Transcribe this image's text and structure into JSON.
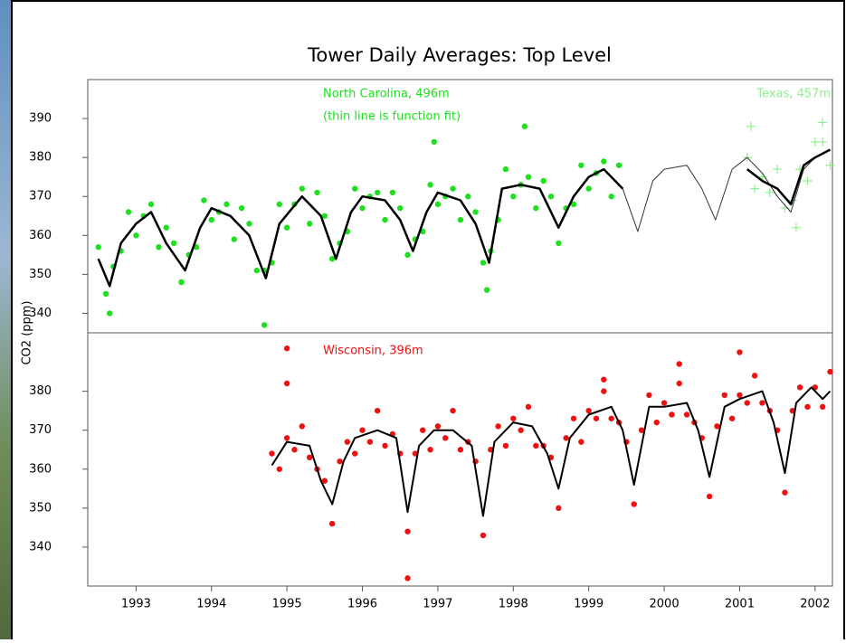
{
  "chart_data": [
    {
      "type": "scatter",
      "title": "Tower Daily Averages:  Top Level",
      "ylabel": "CO2 (ppm)",
      "annotations": [
        "(thin line is function fit)"
      ],
      "xlim": [
        1992.36,
        2002.23
      ],
      "ylim": [
        335,
        400
      ],
      "yticks": [
        340,
        350,
        360,
        370,
        380,
        390
      ],
      "series": [
        {
          "name": "North Carolina, 496m",
          "color": "#1ee01e",
          "marker": "dot",
          "x": [
            1992.5,
            1992.6,
            1992.7,
            1992.8,
            1992.9,
            1993.0,
            1993.1,
            1993.2,
            1993.3,
            1993.4,
            1993.5,
            1993.6,
            1993.7,
            1993.8,
            1993.9,
            1994.0,
            1994.1,
            1994.2,
            1994.3,
            1994.4,
            1994.5,
            1994.6,
            1994.7,
            1994.8,
            1994.9,
            1995.0,
            1995.1,
            1995.2,
            1995.3,
            1995.4,
            1995.5,
            1995.6,
            1995.7,
            1995.8,
            1995.9,
            1996.0,
            1996.1,
            1996.2,
            1996.3,
            1996.4,
            1996.5,
            1996.6,
            1996.7,
            1996.8,
            1996.9,
            1997.0,
            1997.1,
            1997.2,
            1997.3,
            1997.4,
            1997.5,
            1997.6,
            1997.7,
            1997.8,
            1997.9,
            1998.0,
            1998.1,
            1998.2,
            1998.3,
            1998.4,
            1998.5,
            1998.6,
            1998.7,
            1998.8,
            1998.9,
            1999.0,
            1999.1,
            1999.2,
            1999.3,
            1999.4,
            1994.7,
            1996.95,
            1998.15,
            1992.65,
            1997.65
          ],
          "values": [
            357,
            345,
            352,
            356,
            366,
            360,
            365,
            368,
            357,
            362,
            358,
            348,
            355,
            357,
            369,
            364,
            366,
            368,
            359,
            367,
            363,
            351,
            351,
            353,
            368,
            362,
            368,
            372,
            363,
            371,
            365,
            354,
            358,
            361,
            372,
            367,
            370,
            371,
            364,
            371,
            367,
            355,
            359,
            361,
            373,
            368,
            370,
            372,
            364,
            370,
            366,
            353,
            356,
            364,
            377,
            370,
            373,
            375,
            367,
            374,
            370,
            358,
            367,
            368,
            378,
            372,
            376,
            379,
            370,
            378,
            337,
            384,
            388,
            340,
            346
          ]
        },
        {
          "name": "Texas, 457m",
          "color": "#8ef08e",
          "marker": "plus",
          "x": [
            2001.1,
            2001.2,
            2001.3,
            2001.4,
            2001.5,
            2001.6,
            2001.7,
            2001.8,
            2001.9,
            2002.0,
            2002.1,
            2002.2,
            2001.15,
            2001.75,
            2002.1
          ],
          "values": [
            380,
            372,
            375,
            371,
            377,
            367,
            369,
            377,
            374,
            384,
            384,
            378,
            388,
            362,
            389
          ]
        },
        {
          "color": "#000000",
          "line_width": 2.5,
          "x": [
            1992.5,
            1992.65,
            1992.8,
            1993.0,
            1993.2,
            1993.4,
            1993.65,
            1993.85,
            1994.0,
            1994.25,
            1994.5,
            1994.72,
            1994.9,
            1995.2,
            1995.45,
            1995.65,
            1995.85,
            1996.0,
            1996.3,
            1996.5,
            1996.67,
            1996.85,
            1997.0,
            1997.3,
            1997.5,
            1997.68,
            1997.85,
            1998.1,
            1998.35,
            1998.6,
            1998.8,
            1999.0,
            1999.2,
            1999.45
          ],
          "values": [
            354,
            347,
            358,
            363,
            366,
            358,
            351,
            362,
            367,
            365,
            360,
            349,
            363,
            370,
            365,
            354,
            366,
            370,
            369,
            364,
            356,
            366,
            371,
            369,
            363,
            353,
            372,
            373,
            372,
            362,
            370,
            375,
            377,
            372
          ]
        },
        {
          "color": "#333333",
          "line_width": 1,
          "x": [
            1999.45,
            1999.65,
            1999.85,
            2000.0,
            2000.3,
            2000.5,
            2000.68,
            2000.9,
            2001.1,
            2001.3,
            2001.5,
            2001.68,
            2001.85,
            2002.0,
            2002.2
          ],
          "values": [
            372,
            361,
            374,
            377,
            378,
            372,
            364,
            377,
            380,
            376,
            370,
            366,
            377,
            380,
            382
          ]
        },
        {
          "color": "#000000",
          "line_width": 2.5,
          "x": [
            2001.1,
            2001.3,
            2001.5,
            2001.68,
            2001.85,
            2002.0,
            2002.2
          ],
          "values": [
            377,
            374,
            372,
            368,
            378,
            380,
            382
          ]
        }
      ]
    },
    {
      "type": "scatter",
      "xlim": [
        1992.36,
        2002.23
      ],
      "ylim": [
        330,
        395
      ],
      "yticks": [
        340,
        350,
        360,
        370,
        380
      ],
      "xticks": [
        1993,
        1994,
        1995,
        1996,
        1997,
        1998,
        1999,
        2000,
        2001,
        2002
      ],
      "series": [
        {
          "name": "Wisconsin, 396m",
          "color": "#ee1111",
          "marker": "dot",
          "x": [
            1994.8,
            1994.9,
            1995.0,
            1995.1,
            1995.2,
            1995.3,
            1995.4,
            1995.5,
            1995.6,
            1995.7,
            1995.8,
            1995.9,
            1996.0,
            1996.1,
            1996.2,
            1996.3,
            1996.4,
            1996.5,
            1996.6,
            1996.7,
            1996.8,
            1996.9,
            1997.0,
            1997.1,
            1997.2,
            1997.3,
            1997.4,
            1997.5,
            1997.6,
            1997.7,
            1997.8,
            1997.9,
            1998.0,
            1998.1,
            1998.2,
            1998.3,
            1998.4,
            1998.5,
            1998.6,
            1998.7,
            1998.8,
            1998.9,
            1999.0,
            1999.1,
            1999.2,
            1999.3,
            1999.4,
            1999.5,
            1999.6,
            1999.7,
            1999.8,
            1999.9,
            2000.0,
            2000.1,
            2000.2,
            2000.3,
            2000.4,
            2000.5,
            2000.6,
            2000.7,
            2000.8,
            2000.9,
            2001.0,
            2001.1,
            2001.2,
            2001.3,
            2001.4,
            2001.5,
            2001.6,
            2001.7,
            2001.8,
            2001.9,
            2002.0,
            2002.1,
            2002.2,
            1995.0,
            1995.0,
            1996.6,
            2001.0,
            2000.2,
            1999.2
          ],
          "values": [
            364,
            360,
            368,
            365,
            371,
            363,
            360,
            357,
            346,
            362,
            367,
            364,
            370,
            367,
            375,
            366,
            369,
            364,
            344,
            364,
            370,
            365,
            371,
            368,
            375,
            365,
            367,
            362,
            343,
            365,
            371,
            366,
            373,
            370,
            376,
            366,
            366,
            363,
            350,
            368,
            373,
            367,
            375,
            373,
            380,
            373,
            372,
            367,
            351,
            370,
            379,
            372,
            377,
            374,
            382,
            374,
            372,
            368,
            353,
            371,
            379,
            373,
            379,
            377,
            384,
            377,
            375,
            370,
            354,
            375,
            381,
            376,
            381,
            376,
            385,
            391,
            382,
            332,
            390,
            387,
            383
          ]
        },
        {
          "color": "#000000",
          "line_width": 2,
          "x": [
            1994.8,
            1995.0,
            1995.3,
            1995.45,
            1995.6,
            1995.75,
            1995.9,
            1996.2,
            1996.45,
            1996.6,
            1996.75,
            1996.95,
            1997.2,
            1997.45,
            1997.6,
            1997.75,
            1998.0,
            1998.25,
            1998.45,
            1998.6,
            1998.75,
            1999.0,
            1999.3,
            1999.45,
            1999.6,
            1999.8,
            2000.0,
            2000.3,
            2000.45,
            2000.6,
            2000.8,
            2001.0,
            2001.3,
            2001.45,
            2001.6,
            2001.75,
            2001.95,
            2002.1,
            2002.2
          ],
          "values": [
            361,
            367,
            366,
            357,
            351,
            362,
            368,
            370,
            368,
            349,
            366,
            370,
            370,
            366,
            348,
            367,
            372,
            371,
            364,
            355,
            368,
            374,
            376,
            370,
            356,
            376,
            376,
            377,
            370,
            358,
            376,
            378,
            380,
            372,
            359,
            377,
            381,
            378,
            380
          ]
        }
      ]
    }
  ]
}
